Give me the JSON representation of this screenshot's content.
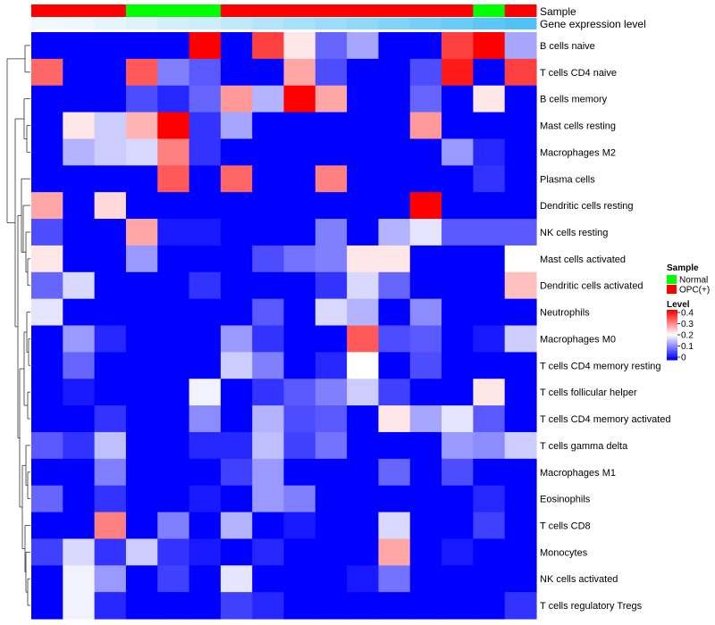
{
  "chart_data": {
    "type": "heatmap",
    "title": "",
    "annotation_rows": [
      {
        "label": "Sample",
        "values": [
          "OPC(+)",
          "OPC(+)",
          "OPC(+)",
          "Normal",
          "Normal",
          "Normal",
          "OPC(+)",
          "OPC(+)",
          "OPC(+)",
          "OPC(+)",
          "OPC(+)",
          "OPC(+)",
          "OPC(+)",
          "OPC(+)",
          "Normal",
          "OPC(+)"
        ]
      },
      {
        "label": "Gene expression level",
        "values": [
          0.0,
          0.02,
          0.05,
          0.08,
          0.12,
          0.15,
          0.2,
          0.25,
          0.3,
          0.35,
          0.4,
          0.45,
          0.5,
          0.55,
          0.6,
          0.65
        ]
      }
    ],
    "rows": [
      "B cells naive",
      "T cells CD4 naive",
      "B cells memory",
      "Mast cells resting",
      "Macrophages M2",
      "Plasma cells",
      "Dendritic cells resting",
      "NK cells resting",
      "Mast cells activated",
      "Dendritic cells activated",
      "Neutrophils",
      "Macrophages M0",
      "T cells CD4 memory resting",
      "T cells follicular helper",
      "T cells CD4 memory activated",
      "T cells gamma delta",
      "Macrophages M1",
      "Eosinophils",
      "T cells CD8",
      "Monocytes",
      "NK cells activated",
      "T cells regulatory  Tregs"
    ],
    "n_columns": 16,
    "values": [
      [
        0,
        0,
        0,
        0,
        0,
        0.4,
        0,
        0.35,
        0.22,
        0.08,
        0.13,
        0,
        0,
        0.35,
        0.4,
        0.13
      ],
      [
        0.32,
        0,
        0,
        0.33,
        0.1,
        0.07,
        0,
        0,
        0.27,
        0.06,
        0,
        0,
        0.06,
        0.38,
        0,
        0.35
      ],
      [
        0,
        0,
        0,
        0.06,
        0.03,
        0.08,
        0.28,
        0.14,
        0.4,
        0.27,
        0,
        0,
        0.08,
        0,
        0.22,
        0
      ],
      [
        0,
        0.22,
        0.16,
        0.26,
        0.4,
        0.04,
        0.13,
        0,
        0,
        0,
        0,
        0,
        0.28,
        0,
        0,
        0
      ],
      [
        0,
        0.14,
        0.16,
        0.17,
        0.3,
        0.04,
        0,
        0,
        0,
        0,
        0,
        0,
        0,
        0.12,
        0.03,
        0
      ],
      [
        0,
        0,
        0,
        0,
        0.33,
        0,
        0.32,
        0,
        0,
        0.3,
        0,
        0,
        0,
        0,
        0.04,
        0
      ],
      [
        0.27,
        0,
        0.23,
        0,
        0,
        0,
        0,
        0,
        0,
        0,
        0,
        0,
        0.4,
        0,
        0,
        0
      ],
      [
        0.06,
        0,
        0,
        0.27,
        0.02,
        0.02,
        0,
        0,
        0,
        0.1,
        0,
        0.14,
        0.18,
        0.07,
        0.07,
        0.07
      ],
      [
        0.22,
        0,
        0,
        0.12,
        0,
        0,
        0,
        0.06,
        0.09,
        0.1,
        0.22,
        0.22,
        0,
        0,
        0,
        0.2
      ],
      [
        0.08,
        0.17,
        0,
        0,
        0,
        0.04,
        0,
        0,
        0,
        0.04,
        0.17,
        0.08,
        0,
        0,
        0,
        0.25
      ],
      [
        0.18,
        0,
        0,
        0,
        0,
        0,
        0,
        0.07,
        0,
        0.17,
        0.14,
        0,
        0.11,
        0,
        0,
        0
      ],
      [
        0,
        0.12,
        0.03,
        0,
        0,
        0,
        0.12,
        0.04,
        0,
        0,
        0.33,
        0.06,
        0.07,
        0,
        0.02,
        0.16
      ],
      [
        0,
        0.08,
        0,
        0,
        0,
        0,
        0.16,
        0.1,
        0,
        0.03,
        0.2,
        0,
        0.06,
        0,
        0,
        0
      ],
      [
        0,
        0.02,
        0,
        0,
        0,
        0.19,
        0,
        0.04,
        0.07,
        0.1,
        0.16,
        0.05,
        0,
        0,
        0.22,
        0
      ],
      [
        0,
        0,
        0.04,
        0,
        0,
        0.11,
        0,
        0.14,
        0.06,
        0.07,
        0,
        0.22,
        0.13,
        0.18,
        0.07,
        0
      ],
      [
        0.07,
        0.04,
        0.15,
        0,
        0,
        0.03,
        0.03,
        0.15,
        0.05,
        0.09,
        0,
        0,
        0,
        0.12,
        0.11,
        0.16
      ],
      [
        0,
        0,
        0.1,
        0,
        0,
        0,
        0.05,
        0.12,
        0,
        0,
        0,
        0.08,
        0,
        0.06,
        0,
        0
      ],
      [
        0.08,
        0,
        0.04,
        0,
        0,
        0.02,
        0,
        0.12,
        0.1,
        0,
        0,
        0,
        0,
        0,
        0.03,
        0
      ],
      [
        0,
        0,
        0.3,
        0,
        0.1,
        0,
        0.14,
        0,
        0.02,
        0,
        0,
        0.17,
        0,
        0,
        0.05,
        0
      ],
      [
        0.05,
        0.17,
        0.04,
        0.16,
        0.04,
        0.02,
        0,
        0.03,
        0,
        0,
        0,
        0.27,
        0,
        0.02,
        0,
        0
      ],
      [
        0,
        0.19,
        0.12,
        0,
        0.05,
        0,
        0.18,
        0,
        0,
        0,
        0.02,
        0.09,
        0,
        0,
        0,
        0
      ],
      [
        0,
        0.19,
        0.03,
        0,
        0,
        0,
        0.05,
        0.03,
        0,
        0,
        0,
        0,
        0,
        0,
        0,
        0.04
      ]
    ],
    "color_scale": {
      "min": 0,
      "max": 0.4,
      "low_color": "#0000FF",
      "mid_color": "#FFFFFF",
      "high_color": "#FF0000",
      "mid_value": 0.2
    },
    "legends": [
      {
        "title": "Sample",
        "entries": [
          {
            "label": "Normal",
            "color": "#00FF00"
          },
          {
            "label": "OPC(+)",
            "color": "#FF0000"
          }
        ]
      },
      {
        "title": "Level",
        "ticks": [
          "0.4",
          "0.3",
          "0.2",
          "0.1",
          "0"
        ]
      }
    ],
    "dendrogram": "rows"
  },
  "colors": {
    "normal": "#00FF00",
    "opc": "#FF0000",
    "expr_low": "#F2F9FD",
    "expr_high": "#4FC3F7",
    "dendro": "#333333"
  }
}
